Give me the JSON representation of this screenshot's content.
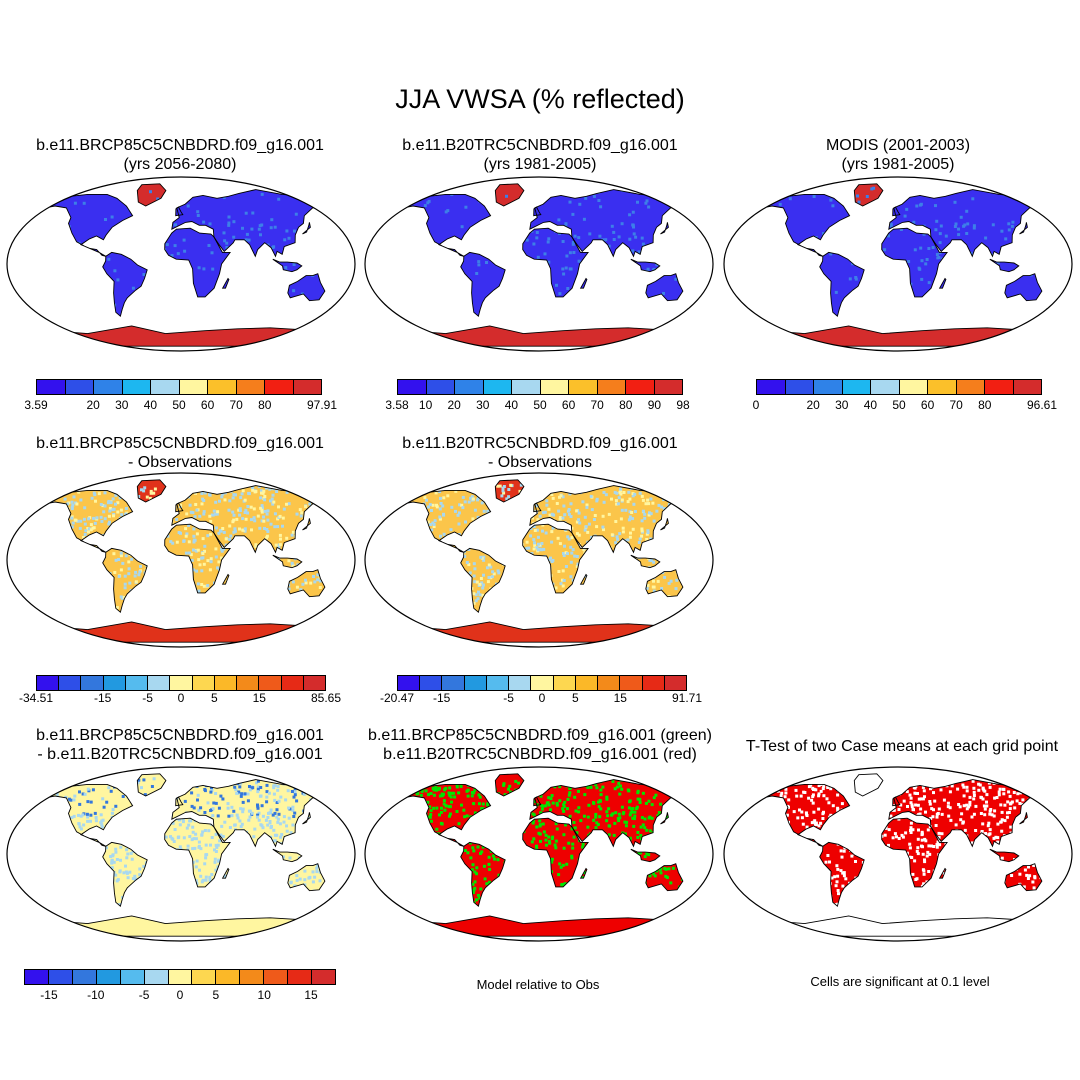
{
  "title": "JJA VWSA (% reflected)",
  "panels": [
    {
      "id": "p1",
      "line1": "b.e11.BRCP85C5CNBDRD.f09_g16.001",
      "line2": "(yrs 2056-2080)",
      "style": "abs"
    },
    {
      "id": "p2",
      "line1": "b.e11.B20TRC5CNBDRD.f09_g16.001",
      "line2": "(yrs 1981-2005)",
      "style": "abs"
    },
    {
      "id": "p3",
      "line1": "MODIS (2001-2003)",
      "line2": "(yrs 1981-2005)",
      "style": "abs"
    },
    {
      "id": "p4",
      "line1": "b.e11.BRCP85C5CNBDRD.f09_g16.001",
      "line2": "- Observations",
      "style": "diff"
    },
    {
      "id": "p5",
      "line1": "b.e11.B20TRC5CNBDRD.f09_g16.001",
      "line2": "- Observations",
      "style": "diff"
    },
    {
      "id": "p6",
      "line1": "b.e11.BRCP85C5CNBDRD.f09_g16.001",
      "line2": "- b.e11.B20TRC5CNBDRD.f09_g16.001",
      "style": "cdiff"
    },
    {
      "id": "p7",
      "line1": "b.e11.BRCP85C5CNBDRD.f09_g16.001 (green)",
      "line2": "b.e11.B20TRC5CNBDRD.f09_g16.001 (red)",
      "style": "rel"
    },
    {
      "id": "p8",
      "line1": "T-Test of two Case means at each grid point",
      "line2": "",
      "style": "ttest"
    }
  ],
  "colorbars": {
    "abs_colors": [
      "#3311ee",
      "#2e4fe8",
      "#2f82e8",
      "#1db7f0",
      "#a8d8f0",
      "#fff6a0",
      "#fbc02a",
      "#f57e1c",
      "#f21f12",
      "#d42c2c"
    ],
    "diff_colors": [
      "#3311ee",
      "#2e4fe8",
      "#3377dd",
      "#2299e0",
      "#55bbee",
      "#a8d8f0",
      "#fff6a0",
      "#fdd750",
      "#fbb828",
      "#f38a1a",
      "#ef5a1a",
      "#e62a16",
      "#d42c2c"
    ],
    "cdiff_colors": [
      "#3311ee",
      "#2e4fe8",
      "#3377dd",
      "#2299e0",
      "#55bbee",
      "#a8d8f0",
      "#fff6a0",
      "#fdd750",
      "#fbb828",
      "#f38a1a",
      "#ef5a1a",
      "#e62a16",
      "#d42c2c"
    ],
    "cb1_ticks": [
      "3.59",
      "20",
      "30",
      "40",
      "50",
      "60",
      "70",
      "80",
      "97.91"
    ],
    "cb2_ticks": [
      "3.58",
      "10",
      "20",
      "30",
      "40",
      "50",
      "60",
      "70",
      "80",
      "90",
      "98"
    ],
    "cb3_ticks": [
      "0",
      "20",
      "30",
      "40",
      "50",
      "60",
      "70",
      "80",
      "96.61"
    ],
    "cb4_ticks": [
      "-34.51",
      "-15",
      "-5",
      "0",
      "5",
      "15",
      "85.65"
    ],
    "cb5_ticks": [
      "-20.47",
      "-15",
      "-5",
      "0",
      "5",
      "15",
      "91.71"
    ],
    "cb6_ticks": [
      "-15",
      "-10",
      "-5",
      "0",
      "5",
      "10",
      "15"
    ]
  },
  "notes": {
    "relative": "Model relative to Obs",
    "significance": "Cells are significant at 0.1 level"
  },
  "map_palettes": {
    "abs": {
      "ocean": "#ffffff",
      "land": "#3a2ff0",
      "land2": "#3d7fe8",
      "ice": "#d42c2c"
    },
    "diff": {
      "ocean": "#ffffff",
      "land": "#fbc54a",
      "land2": "#a8d8f0",
      "ice": "#e0321a"
    },
    "cdiff": {
      "ocean": "#ffffff",
      "land": "#fff6a0",
      "land2": "#a8d8f0",
      "ice": "#fff6a0"
    },
    "rel": {
      "ocean": "#ffffff",
      "land": "#ee0000",
      "land2": "#00e600",
      "ice": "#ee0000"
    },
    "ttest": {
      "ocean": "#ffffff",
      "land": "#ee0000",
      "land2": "#ffffff",
      "ice": "#ffffff"
    }
  }
}
